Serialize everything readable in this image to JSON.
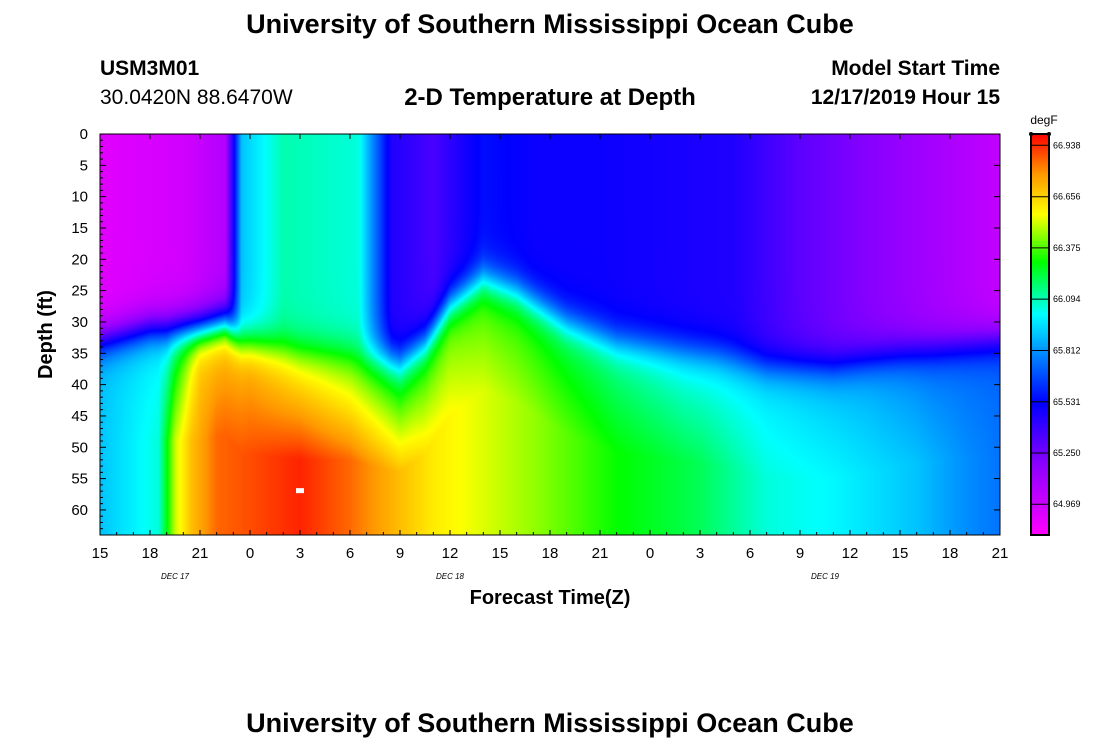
{
  "header": {
    "title": "University of Southern Mississippi Ocean Cube",
    "footer_title": "University of Southern Mississippi Ocean Cube",
    "station": "USM3M01",
    "coords": "30.0420N 88.6470W",
    "subtitle": "2-D Temperature at Depth",
    "start_label": "Model Start Time",
    "start_value": "12/17/2019 Hour 15"
  },
  "chart_data": {
    "type": "heatmap",
    "title": "2-D Temperature at Depth",
    "xlabel": "Forecast Time(Z)",
    "ylabel": "Depth (ft)",
    "x_range_hours": [
      0,
      54
    ],
    "y_range_ft": [
      0,
      64
    ],
    "x_ticks": [
      "15",
      "18",
      "21",
      "0",
      "3",
      "6",
      "9",
      "12",
      "15",
      "18",
      "21",
      "0",
      "3",
      "6",
      "9",
      "12",
      "15",
      "18",
      "21"
    ],
    "y_ticks": [
      "0",
      "5",
      "10",
      "15",
      "20",
      "25",
      "30",
      "35",
      "40",
      "45",
      "50",
      "55",
      "60"
    ],
    "date_labels": [
      {
        "text": "DEC 17",
        "hour": 4.5
      },
      {
        "text": "DEC 18",
        "hour": 21
      },
      {
        "text": "DEC 19",
        "hour": 43.5
      }
    ],
    "colorbar": {
      "unit": "degF",
      "min": 64.8,
      "max": 67.0,
      "ticks": [
        "66.938",
        "66.656",
        "66.375",
        "66.094",
        "65.812",
        "65.531",
        "65.250",
        "64.969"
      ]
    },
    "marker": {
      "hour": 12,
      "depth": 57
    }
  }
}
